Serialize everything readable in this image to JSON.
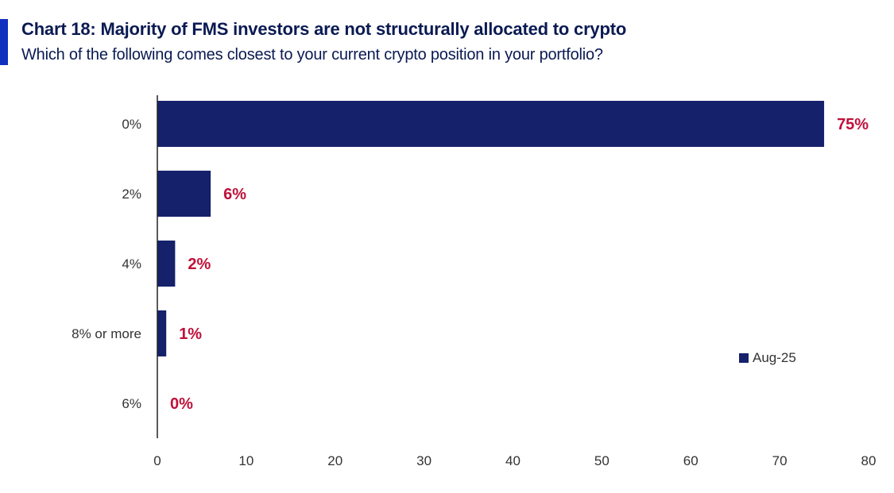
{
  "title": "Chart 18: Majority of FMS investors are not structurally allocated to crypto",
  "subtitle": "Which of the following comes closest to your current crypto position in your portfolio?",
  "colors": {
    "accent": "#1030c0",
    "bar": "#15216b",
    "label": "#c0103a",
    "axis": "#222222"
  },
  "chart_data": {
    "type": "bar",
    "orientation": "horizontal",
    "categories": [
      "0%",
      "2%",
      "4%",
      "8% or more",
      "6%"
    ],
    "series": [
      {
        "name": "Aug-25",
        "values": [
          75,
          6,
          2,
          1,
          0
        ],
        "labels": [
          "75%",
          "6%",
          "2%",
          "1%",
          "0%"
        ]
      }
    ],
    "xlim": [
      0,
      80
    ],
    "xticks": [
      0,
      10,
      20,
      30,
      40,
      50,
      60,
      70,
      80
    ],
    "xlabel": "",
    "ylabel": "",
    "grid": false,
    "legend_position": "right"
  }
}
